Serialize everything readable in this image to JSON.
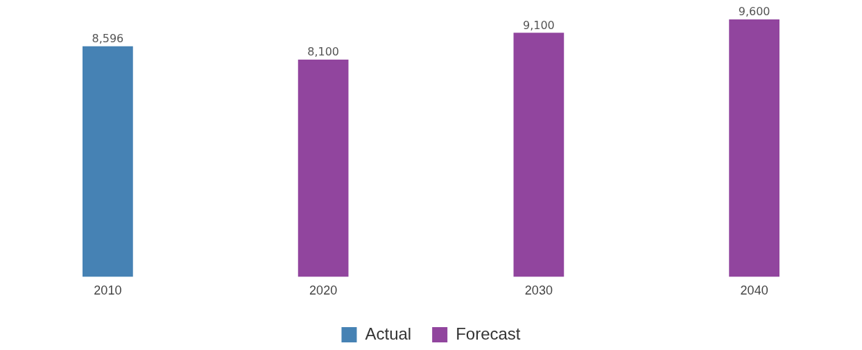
{
  "chart_data": {
    "type": "bar",
    "categories": [
      "2010",
      "2020",
      "2030",
      "2040"
    ],
    "series": [
      {
        "name": "Actual",
        "color": "#4682b4",
        "values": [
          8596,
          null,
          null,
          null
        ],
        "value_labels": [
          "8,596",
          null,
          null,
          null
        ]
      },
      {
        "name": "Forecast",
        "color": "#91459e",
        "values": [
          null,
          8100,
          9100,
          9600
        ],
        "value_labels": [
          null,
          "8,100",
          "9,100",
          "9,600"
        ]
      }
    ],
    "legend": "bottom",
    "grid": false
  }
}
